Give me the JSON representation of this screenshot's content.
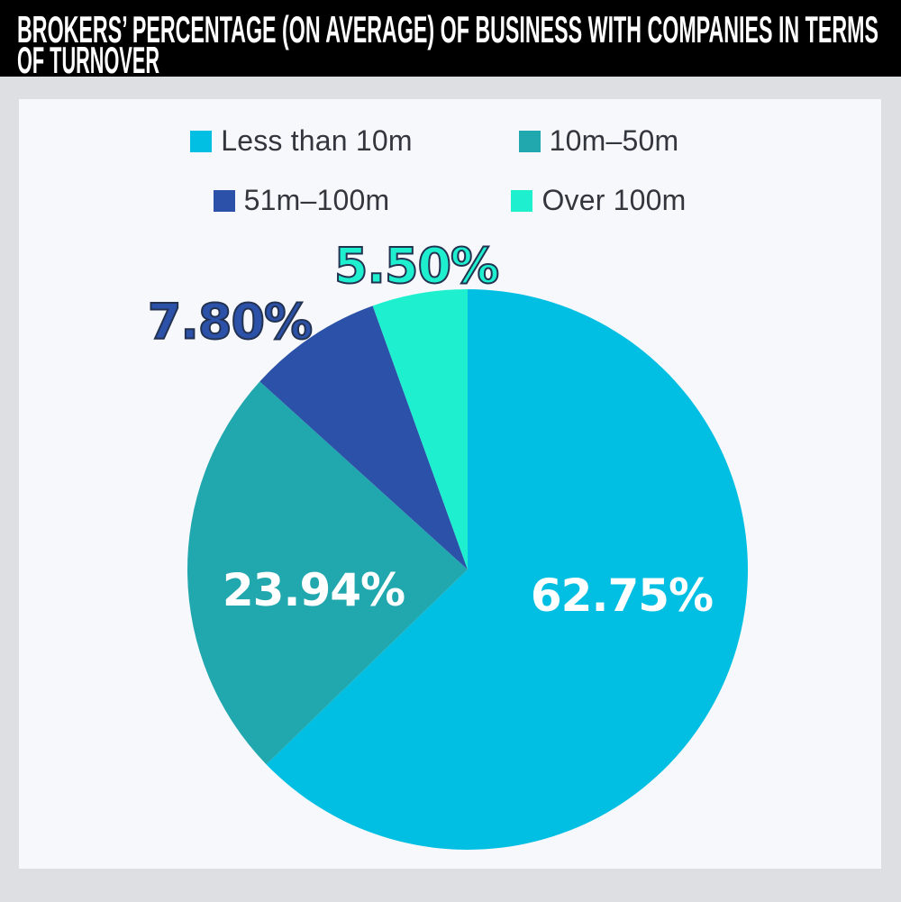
{
  "header": {
    "title_line1": "BROKERS’ PERCENTAGE (ON AVERAGE) OF BUSINESS WITH COMPANIES IN TERMS",
    "title_line2": "OF TURNOVER"
  },
  "colors": {
    "header_bg": "#000000",
    "header_text": "#ffffff",
    "page_bg": "#dedfe3",
    "panel_bg": "#f6f8fc",
    "legend_text": "#33373d",
    "inner_label_text": "#ffffff",
    "label_outline": "#233251"
  },
  "chart_data": {
    "type": "pie",
    "title": "BROKERS’ PERCENTAGE (ON AVERAGE) OF BUSINESS WITH COMPANIES IN TERMS OF TURNOVER",
    "categories": [
      "Less than 10m",
      "10m–50m",
      "51m–100m",
      "Over 100m"
    ],
    "values": [
      62.75,
      23.94,
      7.8,
      5.5
    ],
    "value_labels": [
      "62.75%",
      "23.94%",
      "7.80%",
      "5.50%"
    ],
    "colors": [
      "#00bfe2",
      "#21a8ae",
      "#2b51a8",
      "#1ef0cf"
    ],
    "start_angle": "12-oclock",
    "direction": "clockwise",
    "legend_position": "top",
    "labels_outside": [
      false,
      false,
      true,
      true
    ]
  }
}
